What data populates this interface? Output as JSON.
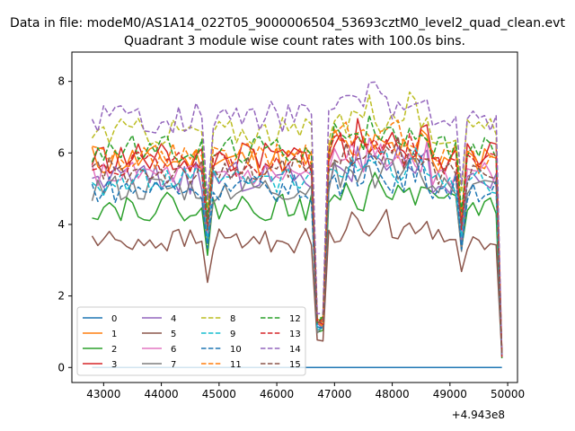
{
  "chart_data": {
    "type": "line",
    "suptitle": "Data in file: modeM0/AS1A14_022T05_9000006504_53693cztM0_level2_quad_clean.evt",
    "title": "Quadrant 3 module wise count rates with 100.0s bins.",
    "xlabel": "",
    "ylabel": "",
    "x_offset_label": "+4.943e8",
    "xlim": [
      42450,
      50170
    ],
    "ylim": [
      -0.42,
      8.82
    ],
    "xticks": [
      43000,
      44000,
      45000,
      46000,
      47000,
      48000,
      49000,
      50000
    ],
    "yticks": [
      0,
      2,
      4,
      6,
      8
    ],
    "x_start": 42800,
    "x_step": 100,
    "n_points": 72,
    "legend": {
      "location": "lower left",
      "ncol": 4
    },
    "series": [
      {
        "name": "0",
        "color": "#1f77b4",
        "dash": "solid",
        "mean": 0.0,
        "noise": 0.0,
        "seed": 1,
        "drop": 0.0
      },
      {
        "name": "1",
        "color": "#ff7f0e",
        "dash": "solid",
        "mean": 5.8,
        "noise": 0.45,
        "seed": 11,
        "drop": 1.6
      },
      {
        "name": "2",
        "color": "#2ca02c",
        "dash": "solid",
        "mean": 4.5,
        "noise": 0.4,
        "seed": 22,
        "drop": 1.3
      },
      {
        "name": "3",
        "color": "#d62728",
        "dash": "solid",
        "mean": 5.85,
        "noise": 0.45,
        "seed": 33,
        "drop": 1.5
      },
      {
        "name": "4",
        "color": "#9467bd",
        "dash": "solid",
        "mean": 5.3,
        "noise": 0.45,
        "seed": 44,
        "drop": 1.4
      },
      {
        "name": "5",
        "color": "#8c564b",
        "dash": "solid",
        "mean": 3.55,
        "noise": 0.35,
        "seed": 55,
        "drop": 1.2
      },
      {
        "name": "6",
        "color": "#e377c2",
        "dash": "solid",
        "mean": 5.4,
        "noise": 0.35,
        "seed": 66,
        "drop": 1.4
      },
      {
        "name": "7",
        "color": "#7f7f7f",
        "dash": "solid",
        "mean": 5.0,
        "noise": 0.4,
        "seed": 77,
        "drop": 1.4
      },
      {
        "name": "8",
        "color": "#bcbd22",
        "dash": "dashed",
        "mean": 6.6,
        "noise": 0.4,
        "seed": 88,
        "drop": 1.8
      },
      {
        "name": "9",
        "color": "#17becf",
        "dash": "dashed",
        "mean": 5.2,
        "noise": 0.4,
        "seed": 99,
        "drop": 1.4
      },
      {
        "name": "10",
        "color": "#1f77b4",
        "dash": "dashed",
        "mean": 5.0,
        "noise": 0.4,
        "seed": 110,
        "drop": 1.4
      },
      {
        "name": "11",
        "color": "#ff7f0e",
        "dash": "dashed",
        "mean": 5.9,
        "noise": 0.4,
        "seed": 121,
        "drop": 1.5
      },
      {
        "name": "12",
        "color": "#2ca02c",
        "dash": "dashed",
        "mean": 6.1,
        "noise": 0.4,
        "seed": 132,
        "drop": 1.6
      },
      {
        "name": "13",
        "color": "#d62728",
        "dash": "dashed",
        "mean": 5.7,
        "noise": 0.35,
        "seed": 143,
        "drop": 1.5
      },
      {
        "name": "14",
        "color": "#9467bd",
        "dash": "dashed",
        "mean": 7.0,
        "noise": 0.45,
        "seed": 154,
        "drop": 1.8
      },
      {
        "name": "15",
        "color": "#8c564b",
        "dash": "dashed",
        "mean": 5.5,
        "noise": 0.4,
        "seed": 165,
        "drop": 1.5
      }
    ],
    "features": {
      "dips": [
        {
          "x": 44800,
          "factor": 0.65
        },
        {
          "x": 46750,
          "factor": 0.22
        },
        {
          "x": 49200,
          "factor": 0.7
        }
      ],
      "boost_region": [
        47000,
        48600
      ],
      "end_value": 0.25
    }
  }
}
